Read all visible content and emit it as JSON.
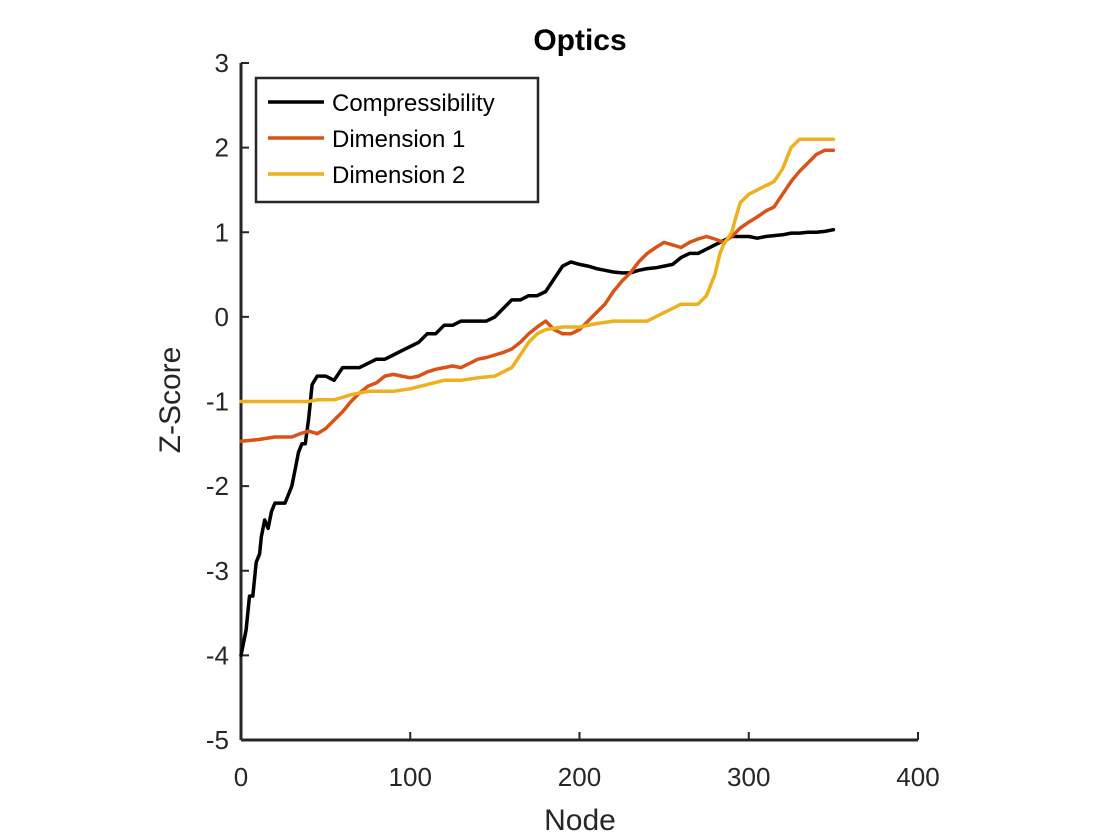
{
  "chart_data": {
    "type": "line",
    "title": "Optics",
    "xlabel": "Node",
    "ylabel": "Z-Score",
    "xlim": [
      0,
      400
    ],
    "ylim": [
      -5,
      3
    ],
    "xticks": [
      0,
      100,
      200,
      300,
      400
    ],
    "yticks": [
      -5,
      -4,
      -3,
      -2,
      -1,
      0,
      1,
      2,
      3
    ],
    "grid": false,
    "legend_position": "top-left",
    "series": [
      {
        "name": "Compressibility",
        "color": "#000000",
        "x": [
          0,
          3,
          5,
          7,
          9,
          11,
          12,
          14,
          16,
          18,
          20,
          22,
          26,
          28,
          30,
          32,
          34,
          36,
          38,
          40,
          42,
          45,
          50,
          55,
          60,
          65,
          70,
          75,
          80,
          85,
          90,
          95,
          100,
          105,
          110,
          115,
          120,
          125,
          130,
          135,
          140,
          145,
          150,
          155,
          160,
          165,
          170,
          175,
          180,
          185,
          190,
          195,
          200,
          205,
          210,
          215,
          220,
          225,
          230,
          235,
          240,
          245,
          250,
          255,
          260,
          265,
          270,
          275,
          280,
          285,
          290,
          295,
          300,
          305,
          310,
          315,
          320,
          325,
          330,
          335,
          340,
          345,
          350
        ],
        "y": [
          -4.0,
          -3.7,
          -3.3,
          -3.3,
          -2.9,
          -2.8,
          -2.6,
          -2.4,
          -2.5,
          -2.3,
          -2.2,
          -2.2,
          -2.2,
          -2.1,
          -2.0,
          -1.8,
          -1.6,
          -1.5,
          -1.5,
          -1.2,
          -0.8,
          -0.7,
          -0.7,
          -0.75,
          -0.6,
          -0.6,
          -0.6,
          -0.55,
          -0.5,
          -0.5,
          -0.45,
          -0.4,
          -0.35,
          -0.3,
          -0.2,
          -0.2,
          -0.1,
          -0.1,
          -0.05,
          -0.05,
          -0.05,
          -0.05,
          0.0,
          0.1,
          0.2,
          0.2,
          0.25,
          0.25,
          0.3,
          0.45,
          0.6,
          0.65,
          0.62,
          0.6,
          0.57,
          0.55,
          0.53,
          0.52,
          0.52,
          0.55,
          0.57,
          0.58,
          0.6,
          0.62,
          0.7,
          0.75,
          0.75,
          0.8,
          0.85,
          0.9,
          0.95,
          0.95,
          0.95,
          0.93,
          0.95,
          0.96,
          0.97,
          0.99,
          0.99,
          1.0,
          1.0,
          1.01,
          1.03
        ]
      },
      {
        "name": "Dimension 1",
        "color": "#D95319",
        "x": [
          0,
          10,
          20,
          30,
          35,
          40,
          45,
          50,
          55,
          60,
          65,
          70,
          75,
          80,
          85,
          90,
          95,
          100,
          105,
          110,
          115,
          120,
          125,
          130,
          135,
          140,
          145,
          150,
          155,
          160,
          165,
          170,
          175,
          180,
          185,
          190,
          195,
          200,
          205,
          210,
          215,
          220,
          225,
          230,
          235,
          240,
          245,
          250,
          255,
          260,
          265,
          270,
          275,
          280,
          285,
          290,
          295,
          300,
          305,
          310,
          315,
          320,
          325,
          330,
          335,
          340,
          345,
          350
        ],
        "y": [
          -1.47,
          -1.45,
          -1.42,
          -1.42,
          -1.38,
          -1.35,
          -1.38,
          -1.32,
          -1.22,
          -1.12,
          -1.0,
          -0.9,
          -0.82,
          -0.78,
          -0.7,
          -0.68,
          -0.7,
          -0.72,
          -0.7,
          -0.65,
          -0.62,
          -0.6,
          -0.58,
          -0.6,
          -0.55,
          -0.5,
          -0.48,
          -0.45,
          -0.42,
          -0.38,
          -0.3,
          -0.2,
          -0.12,
          -0.05,
          -0.15,
          -0.2,
          -0.2,
          -0.15,
          -0.05,
          0.05,
          0.15,
          0.3,
          0.42,
          0.52,
          0.65,
          0.75,
          0.82,
          0.88,
          0.85,
          0.82,
          0.88,
          0.92,
          0.95,
          0.92,
          0.88,
          0.95,
          1.05,
          1.12,
          1.18,
          1.25,
          1.3,
          1.45,
          1.6,
          1.72,
          1.82,
          1.92,
          1.97,
          1.97
        ]
      },
      {
        "name": "Dimension 2",
        "color": "#EDB120",
        "x": [
          0,
          20,
          40,
          45,
          55,
          60,
          65,
          70,
          75,
          80,
          90,
          100,
          110,
          120,
          130,
          140,
          150,
          160,
          165,
          170,
          175,
          180,
          190,
          200,
          210,
          220,
          230,
          240,
          250,
          255,
          260,
          270,
          275,
          280,
          283,
          285,
          290,
          292,
          295,
          300,
          305,
          310,
          315,
          320,
          322,
          325,
          330,
          340,
          350
        ],
        "y": [
          -1.0,
          -1.0,
          -1.0,
          -0.98,
          -0.98,
          -0.95,
          -0.92,
          -0.9,
          -0.88,
          -0.88,
          -0.88,
          -0.85,
          -0.8,
          -0.75,
          -0.75,
          -0.72,
          -0.7,
          -0.6,
          -0.45,
          -0.3,
          -0.2,
          -0.15,
          -0.12,
          -0.12,
          -0.08,
          -0.05,
          -0.05,
          -0.05,
          0.05,
          0.1,
          0.15,
          0.15,
          0.25,
          0.5,
          0.75,
          0.85,
          1.0,
          1.15,
          1.35,
          1.45,
          1.5,
          1.55,
          1.6,
          1.75,
          1.85,
          2.0,
          2.1,
          2.1,
          2.1
        ]
      }
    ]
  }
}
